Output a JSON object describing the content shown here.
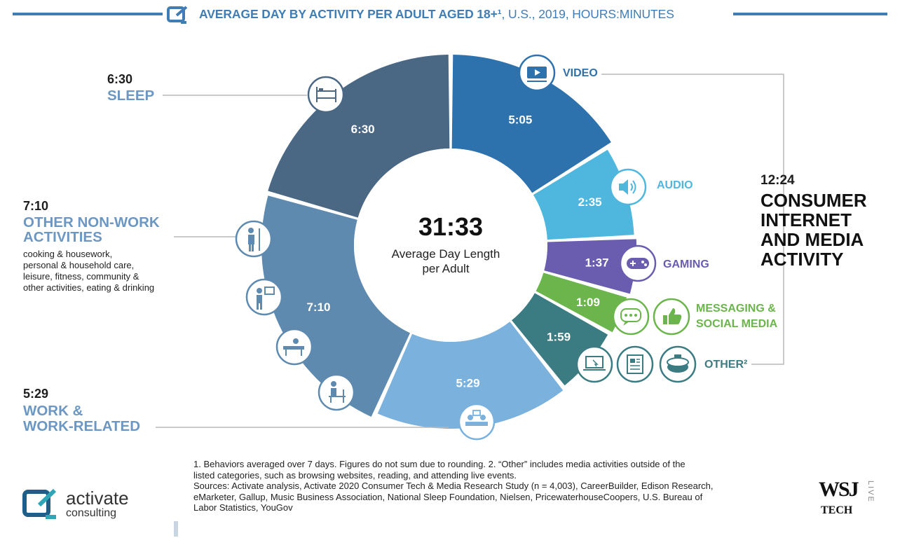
{
  "header": {
    "title_bold": "AVERAGE DAY BY ACTIVITY PER ADULT AGED 18+¹",
    "title_rest": ", U.S., 2019, HOURS:MINUTES"
  },
  "center": {
    "total": "31:33",
    "line1": "Average Day Length",
    "line2": "per Adult"
  },
  "left_labels": {
    "sleep": {
      "value": "6:30",
      "category": "SLEEP"
    },
    "nonwork": {
      "value": "7:10",
      "category_line1": "OTHER NON-WORK",
      "category_line2": "ACTIVITIES",
      "notes": [
        "cooking & housework,",
        "personal & household care,",
        "leisure, fitness, community &",
        "other activities, eating & drinking"
      ]
    },
    "work": {
      "value": "5:29",
      "category_line1": "WORK &",
      "category_line2": "WORK-RELATED"
    }
  },
  "right_labels": {
    "video": "VIDEO",
    "audio": "AUDIO",
    "gaming": "GAMING",
    "messaging_line1": "MESSAGING &",
    "messaging_line2": "SOCIAL MEDIA",
    "other": "OTHER²",
    "consumer_value": "12:24",
    "consumer_lines": [
      "CONSUMER",
      "INTERNET",
      "AND MEDIA",
      "ACTIVITY"
    ]
  },
  "footnotes": {
    "lines": [
      "1. Behaviors averaged over 7 days. Figures do not sum due to rounding.  2. “Other” includes media activities outside of the",
      "listed categories, such as browsing websites, reading, and attending live events.",
      "Sources: Activate analysis, Activate 2020 Consumer Tech & Media Research Study (n = 4,003), CareerBuilder, Edison Research,",
      "eMarketer, Gallup, Music Business Association, National Sleep Foundation, Nielsen, PricewaterhouseCoopers, U.S. Bureau of",
      "Labor Statistics, YouGov"
    ]
  },
  "branding": {
    "activate": "activate",
    "consulting": "consulting",
    "wsj": "WSJ",
    "tech": "TECH",
    "live": "LIVE"
  },
  "colors": {
    "accent": "#3f7db4",
    "sleep": "#4a6784",
    "nonwork": "#5e8ab0",
    "work": "#7ab1dd",
    "video": "#2e72ad",
    "audio": "#4fb7dd",
    "gaming": "#6a5db0",
    "messaging": "#6cb54c",
    "other": "#3b7b82"
  },
  "chart_data": {
    "type": "pie",
    "title": "AVERAGE DAY BY ACTIVITY PER ADULT AGED 18+, U.S., 2019, HOURS:MINUTES",
    "center_label": "31:33 Average Day Length per Adult",
    "unit": "hours:minutes",
    "total_minutes": 1893,
    "slices": [
      {
        "key": "video",
        "label": "VIDEO",
        "value_label": "5:05",
        "minutes": 305,
        "color": "#2e72ad",
        "group": "CONSUMER INTERNET AND MEDIA ACTIVITY"
      },
      {
        "key": "audio",
        "label": "AUDIO",
        "value_label": "2:35",
        "minutes": 155,
        "color": "#4fb7dd",
        "group": "CONSUMER INTERNET AND MEDIA ACTIVITY"
      },
      {
        "key": "gaming",
        "label": "GAMING",
        "value_label": "1:37",
        "minutes": 97,
        "color": "#6a5db0",
        "group": "CONSUMER INTERNET AND MEDIA ACTIVITY"
      },
      {
        "key": "messaging",
        "label": "MESSAGING & SOCIAL MEDIA",
        "value_label": "1:09",
        "minutes": 69,
        "color": "#6cb54c",
        "group": "CONSUMER INTERNET AND MEDIA ACTIVITY"
      },
      {
        "key": "other",
        "label": "OTHER",
        "value_label": "1:59",
        "minutes": 119,
        "color": "#3b7b82",
        "group": "CONSUMER INTERNET AND MEDIA ACTIVITY"
      },
      {
        "key": "work",
        "label": "WORK & WORK-RELATED",
        "value_label": "5:29",
        "minutes": 329,
        "color": "#7ab1dd",
        "group": ""
      },
      {
        "key": "nonwork",
        "label": "OTHER NON-WORK ACTIVITIES",
        "value_label": "7:10",
        "minutes": 430,
        "color": "#5e8ab0",
        "group": ""
      },
      {
        "key": "sleep",
        "label": "SLEEP",
        "value_label": "6:30",
        "minutes": 390,
        "color": "#4a6784",
        "group": ""
      }
    ],
    "group_total": {
      "label": "CONSUMER INTERNET AND MEDIA ACTIVITY",
      "value_label": "12:24"
    }
  }
}
